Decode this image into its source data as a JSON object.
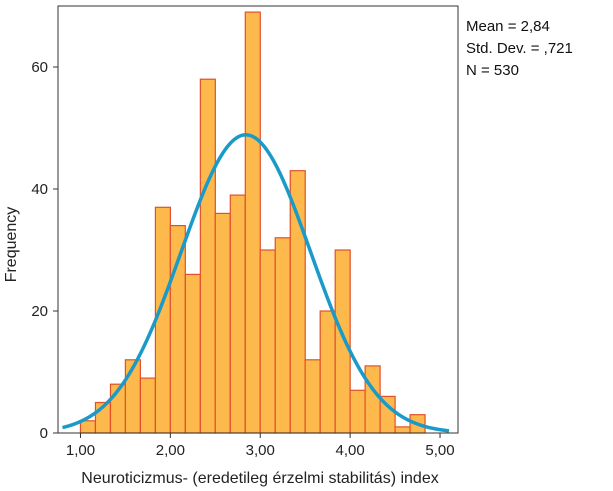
{
  "chart_data": {
    "type": "bar",
    "xlabel": "Neuroticizmus- (eredetileg érzelmi stabilitás) index",
    "ylabel": "Frequency",
    "xlim": [
      0.75,
      5.2
    ],
    "ylim": [
      0,
      70
    ],
    "xticks": [
      1.0,
      2.0,
      3.0,
      4.0,
      5.0
    ],
    "xtick_labels": [
      "1,00",
      "2,00",
      "3,00",
      "4,00",
      "5,00"
    ],
    "yticks": [
      0,
      20,
      40,
      60
    ],
    "ytick_labels": [
      "0",
      "20",
      "40",
      "60"
    ],
    "bin_width": 0.1667,
    "bins": [
      {
        "center": 1.083,
        "count": 2
      },
      {
        "center": 1.25,
        "count": 5
      },
      {
        "center": 1.417,
        "count": 8
      },
      {
        "center": 1.583,
        "count": 12
      },
      {
        "center": 1.75,
        "count": 9
      },
      {
        "center": 1.917,
        "count": 37
      },
      {
        "center": 2.083,
        "count": 34
      },
      {
        "center": 2.25,
        "count": 26
      },
      {
        "center": 2.417,
        "count": 58
      },
      {
        "center": 2.583,
        "count": 36
      },
      {
        "center": 2.75,
        "count": 39
      },
      {
        "center": 2.917,
        "count": 69
      },
      {
        "center": 3.083,
        "count": 30
      },
      {
        "center": 3.25,
        "count": 32
      },
      {
        "center": 3.417,
        "count": 43
      },
      {
        "center": 3.583,
        "count": 12
      },
      {
        "center": 3.75,
        "count": 20
      },
      {
        "center": 3.917,
        "count": 30
      },
      {
        "center": 4.083,
        "count": 7
      },
      {
        "center": 4.25,
        "count": 11
      },
      {
        "center": 4.417,
        "count": 6
      },
      {
        "center": 4.583,
        "count": 1
      },
      {
        "center": 4.75,
        "count": 3
      }
    ],
    "normal_curve": {
      "mean": 2.84,
      "sd": 0.721,
      "n": 530,
      "x_range": [
        0.8,
        5.1
      ]
    },
    "stats_box": {
      "mean": "Mean = 2,84",
      "sd": "Std. Dev. = ,721",
      "n": "N = 530"
    },
    "colors": {
      "bar_fill": "#FDB94B",
      "bar_edge": "#E2502A",
      "curve": "#1A9AC8",
      "axis": "#333333"
    },
    "grid": false,
    "legend": "top-right"
  }
}
